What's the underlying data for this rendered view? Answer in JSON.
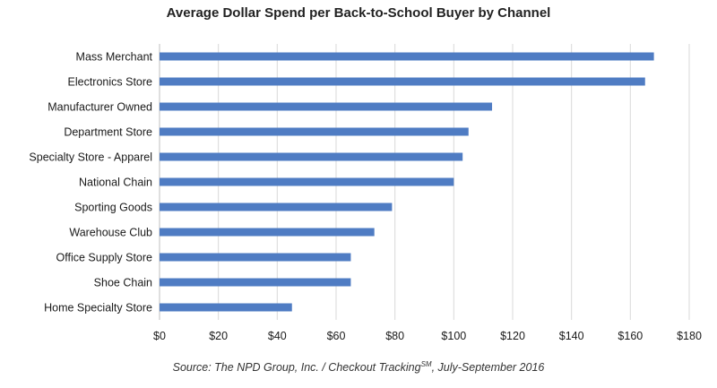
{
  "chart_data": {
    "type": "bar",
    "orientation": "horizontal",
    "title": "Average Dollar Spend per Back-to-School Buyer by Channel",
    "categories": [
      "Mass Merchant",
      "Electronics Store",
      "Manufacturer Owned",
      "Department Store",
      "Specialty Store - Apparel",
      "National Chain",
      "Sporting Goods",
      "Warehouse Club",
      "Office Supply Store",
      "Shoe Chain",
      "Home Specialty Store"
    ],
    "values": [
      168,
      165,
      113,
      105,
      103,
      100,
      79,
      73,
      65,
      65,
      45
    ],
    "xlim": [
      0,
      180
    ],
    "x_ticks": [
      "$0",
      "$20",
      "$40",
      "$60",
      "$80",
      "$100",
      "$120",
      "$140",
      "$160",
      "$180"
    ],
    "grid": true,
    "bar_color": "#4f7cc3",
    "source": {
      "prefix": "Source: The NPD Group, Inc. / Checkout Tracking",
      "superscript": "SM",
      "suffix": ", July-September 2016"
    }
  }
}
